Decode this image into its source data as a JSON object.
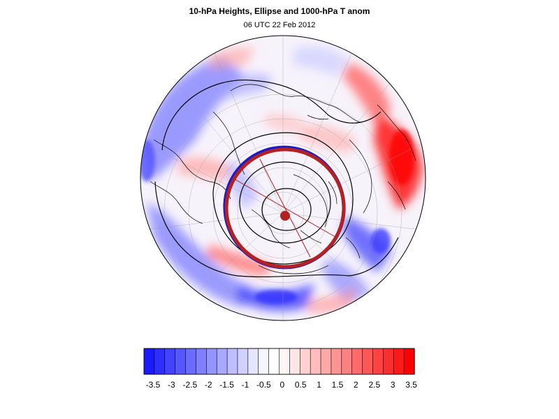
{
  "header": {
    "title": "10-hPa Heights, Ellipse and 1000-hPa T anom",
    "subtitle": "06 UTC 22 Feb 2012"
  },
  "colorbar": {
    "labels": [
      "-3.5",
      "-3",
      "-2.5",
      "-2",
      "-1.5",
      "-1",
      "-0.5",
      "0",
      "0.5",
      "1",
      "1.5",
      "2",
      "2.5",
      "3",
      "3.5"
    ],
    "colors": [
      "#1a1aff",
      "#2e2eff",
      "#4242ff",
      "#5757ff",
      "#6b6bff",
      "#8080ff",
      "#9494ff",
      "#a8a8ff",
      "#bdbdff",
      "#d1d1ff",
      "#e5e5ff",
      "#f5f5ff",
      "#ffffff",
      "#fff5f5",
      "#ffe5e5",
      "#ffd1d1",
      "#ffbdbd",
      "#ffa8a8",
      "#ff9494",
      "#ff8080",
      "#ff6b6b",
      "#ff5757",
      "#ff4242",
      "#ff2e2e",
      "#ff1a1a",
      "#ff0000"
    ]
  },
  "map": {
    "projection": "north-polar-orthographic",
    "ellipse_color": "#b22222",
    "ellipse_shadow_color": "#1a1acc",
    "contour_color": "#000000"
  }
}
